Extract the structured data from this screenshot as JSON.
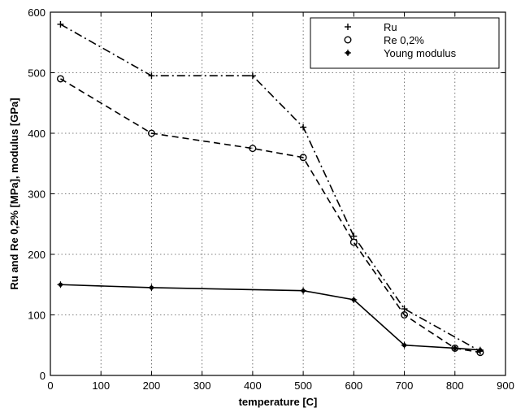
{
  "chart_data": {
    "type": "line",
    "title": "",
    "xlabel": "temperature [C]",
    "ylabel": "Ru and Re 0,2% [MPa], modulus [GPa]",
    "xlim": [
      0,
      900
    ],
    "ylim": [
      0,
      600
    ],
    "xticks": [
      "0",
      "100",
      "200",
      "300",
      "400",
      "500",
      "600",
      "700",
      "800",
      "900"
    ],
    "yticks": [
      "0",
      "100",
      "200",
      "300",
      "400",
      "500",
      "600"
    ],
    "grid": true,
    "legend_position": "top-right",
    "series": [
      {
        "name": "Ru",
        "marker": "plus",
        "line_style": "dash-dot",
        "color": "#000000",
        "x": [
          20,
          200,
          400,
          500,
          600,
          700,
          850
        ],
        "y": [
          580,
          495,
          495,
          410,
          230,
          110,
          40
        ]
      },
      {
        "name": "Re 0,2%",
        "marker": "circle",
        "line_style": "dashed",
        "color": "#000000",
        "x": [
          20,
          200,
          400,
          500,
          600,
          700,
          800,
          850
        ],
        "y": [
          490,
          400,
          375,
          360,
          220,
          100,
          45,
          38
        ]
      },
      {
        "name": "Young modulus",
        "marker": "star",
        "line_style": "solid",
        "color": "#000000",
        "x": [
          20,
          200,
          500,
          600,
          700,
          800,
          850
        ],
        "y": [
          150,
          145,
          140,
          125,
          50,
          45,
          42
        ]
      }
    ]
  }
}
